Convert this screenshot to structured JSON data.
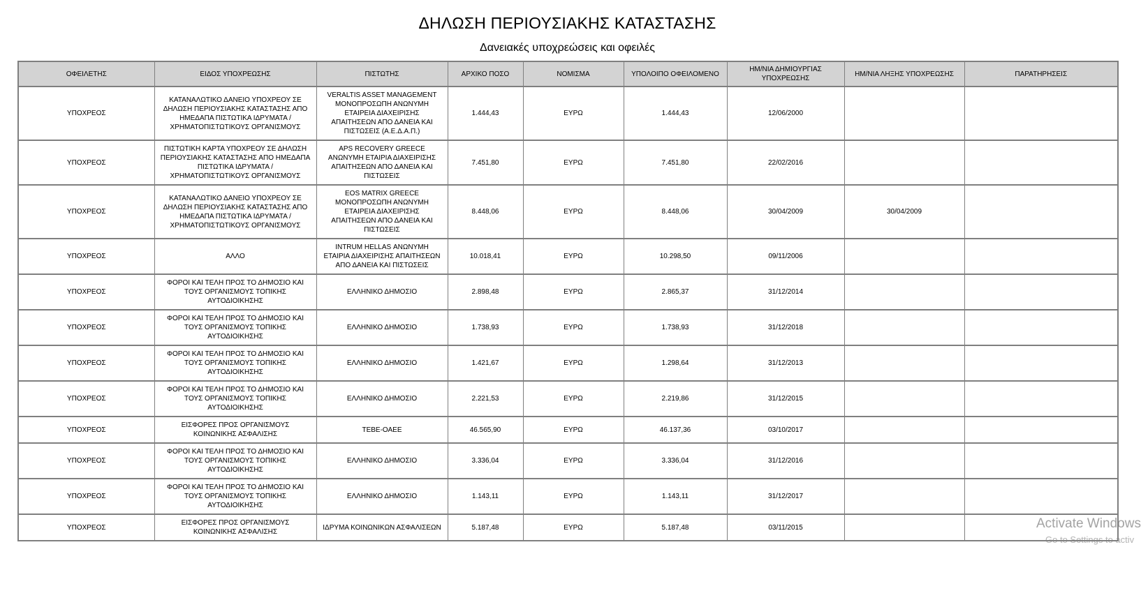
{
  "page": {
    "title": "ΔΗΛΩΣΗ ΠΕΡΙΟΥΣΙΑΚΗΣ ΚΑΤΑΣΤΑΣΗΣ",
    "subtitle": "Δανειακές υποχρεώσεις και οφειλές"
  },
  "table": {
    "columns": [
      "ΟΦΕΙΛΕΤΗΣ",
      "ΕΙΔΟΣ ΥΠΟΧΡΕΩΣΗΣ",
      "ΠΙΣΤΩΤΗΣ",
      "ΑΡΧΙΚΟ ΠΟΣΟ",
      "ΝΟΜΙΣΜΑ",
      "ΥΠΟΛΟΙΠΟ ΟΦΕΙΛΟΜΕΝΟ",
      "ΗΜ/ΝΙΑ ΔΗΜΙΟΥΡΓΙΑΣ ΥΠΟΧΡΕΩΣΗΣ",
      "ΗΜ/ΝΙΑ ΛΗΞΗΣ ΥΠΟΧΡΕΩΣΗΣ",
      "ΠΑΡΑΤΗΡΗΣΕΙΣ"
    ],
    "column_keys": [
      "debtor",
      "obligation-type",
      "creditor",
      "initial-amount",
      "currency",
      "remaining-balance",
      "creation-date",
      "end-date",
      "notes"
    ],
    "rows": [
      [
        "ΥΠΟΧΡΕΟΣ",
        "ΚΑΤΑΝΑΛΩΤΙΚΟ ΔΑΝΕΙΟ ΥΠΟΧΡΕΟΥ ΣΕ ΔΗΛΩΣΗ ΠΕΡΙΟΥΣΙΑΚΗΣ ΚΑΤΑΣΤΑΣΗΣ ΑΠΟ ΗΜΕΔΑΠΑ ΠΙΣΤΩΤΙΚΑ ΙΔΡΥΜΑΤΑ / ΧΡΗΜΑΤΟΠΙΣΤΩΤΙΚΟΥΣ ΟΡΓΑΝΙΣΜΟΥΣ",
        "VERALTIS ASSET MANAGEMENT ΜΟΝΟΠΡΟΣΩΠΗ ΑΝΩΝΥΜΗ ΕΤΑΙΡΕΙΑ ΔΙΑΧΕΙΡΙΣΗΣ ΑΠΑΙΤΗΣΕΩΝ ΑΠΟ ΔΑΝΕΙΑ ΚΑΙ ΠΙΣΤΩΣΕΙΣ (Α.Ε.Δ.Α.Π.)",
        "1.444,43",
        "ΕΥΡΩ",
        "1.444,43",
        "12/06/2000",
        "",
        ""
      ],
      [
        "ΥΠΟΧΡΕΟΣ",
        "ΠΙΣΤΩΤΙΚΗ ΚΑΡΤΑ ΥΠΟΧΡΕΟΥ ΣΕ ΔΗΛΩΣΗ ΠΕΡΙΟΥΣΙΑΚΗΣ ΚΑΤΑΣΤΑΣΗΣ ΑΠΟ ΗΜΕΔΑΠΑ ΠΙΣΤΩΤΙΚΑ ΙΔΡΥΜΑΤΑ / ΧΡΗΜΑΤΟΠΙΣΤΩΤΙΚΟΥΣ ΟΡΓΑΝΙΣΜΟΥΣ",
        "APS RECOVERY GREECE ΑΝΩΝΥΜΗ ΕΤΑΙΡΙΑ ΔΙΑΧΕΙΡΙΣΗΣ ΑΠΑΙΤΗΣΕΩΝ ΑΠΟ ΔΑΝΕΙΑ ΚΑΙ ΠΙΣΤΩΣΕΙΣ",
        "7.451,80",
        "ΕΥΡΩ",
        "7.451,80",
        "22/02/2016",
        "",
        ""
      ],
      [
        "ΥΠΟΧΡΕΟΣ",
        "ΚΑΤΑΝΑΛΩΤΙΚΟ ΔΑΝΕΙΟ ΥΠΟΧΡΕΟΥ ΣΕ ΔΗΛΩΣΗ ΠΕΡΙΟΥΣΙΑΚΗΣ ΚΑΤΑΣΤΑΣΗΣ ΑΠΟ ΗΜΕΔΑΠΑ ΠΙΣΤΩΤΙΚΑ ΙΔΡΥΜΑΤΑ / ΧΡΗΜΑΤΟΠΙΣΤΩΤΙΚΟΥΣ ΟΡΓΑΝΙΣΜΟΥΣ",
        "EOS MATRIX GREECE ΜΟΝΟΠΡΟΣΩΠΗ ΑΝΩΝΥΜΗ ΕΤΑΙΡΕΙΑ ΔΙΑΧΕΙΡΙΣΗΣ ΑΠΑΙΤΗΣΕΩΝ ΑΠΟ ΔΑΝΕΙΑ ΚΑΙ ΠΙΣΤΩΣΕΙΣ",
        "8.448,06",
        "ΕΥΡΩ",
        "8.448,06",
        "30/04/2009",
        "30/04/2009",
        ""
      ],
      [
        "ΥΠΟΧΡΕΟΣ",
        "ΑΛΛΟ",
        "INTRUM HELLAS ΑΝΩΝΥΜΗ ΕΤΑΙΡΙΑ ΔΙΑΧΕΙΡΙΣΗΣ ΑΠΑΙΤΗΣΕΩΝ ΑΠΟ ΔΑΝΕΙΑ ΚΑΙ ΠΙΣΤΩΣΕΙΣ",
        "10.018,41",
        "ΕΥΡΩ",
        "10.298,50",
        "09/11/2006",
        "",
        ""
      ],
      [
        "ΥΠΟΧΡΕΟΣ",
        "ΦΟΡΟΙ ΚΑΙ ΤΕΛΗ ΠΡΟΣ ΤΟ ΔΗΜΟΣΙΟ ΚΑΙ ΤΟΥΣ ΟΡΓΑΝΙΣΜΟΥΣ ΤΟΠΙΚΗΣ ΑΥΤΟΔΙΟΙΚΗΣΗΣ",
        "ΕΛΛΗΝΙΚΟ ΔΗΜΟΣΙΟ",
        "2.898,48",
        "ΕΥΡΩ",
        "2.865,37",
        "31/12/2014",
        "",
        ""
      ],
      [
        "ΥΠΟΧΡΕΟΣ",
        "ΦΟΡΟΙ ΚΑΙ ΤΕΛΗ ΠΡΟΣ ΤΟ ΔΗΜΟΣΙΟ ΚΑΙ ΤΟΥΣ ΟΡΓΑΝΙΣΜΟΥΣ ΤΟΠΙΚΗΣ ΑΥΤΟΔΙΟΙΚΗΣΗΣ",
        "ΕΛΛΗΝΙΚΟ ΔΗΜΟΣΙΟ",
        "1.738,93",
        "ΕΥΡΩ",
        "1.738,93",
        "31/12/2018",
        "",
        ""
      ],
      [
        "ΥΠΟΧΡΕΟΣ",
        "ΦΟΡΟΙ ΚΑΙ ΤΕΛΗ ΠΡΟΣ ΤΟ ΔΗΜΟΣΙΟ ΚΑΙ ΤΟΥΣ ΟΡΓΑΝΙΣΜΟΥΣ ΤΟΠΙΚΗΣ ΑΥΤΟΔΙΟΙΚΗΣΗΣ",
        "ΕΛΛΗΝΙΚΟ ΔΗΜΟΣΙΟ",
        "1.421,67",
        "ΕΥΡΩ",
        "1.298,64",
        "31/12/2013",
        "",
        ""
      ],
      [
        "ΥΠΟΧΡΕΟΣ",
        "ΦΟΡΟΙ ΚΑΙ ΤΕΛΗ ΠΡΟΣ ΤΟ ΔΗΜΟΣΙΟ ΚΑΙ ΤΟΥΣ ΟΡΓΑΝΙΣΜΟΥΣ ΤΟΠΙΚΗΣ ΑΥΤΟΔΙΟΙΚΗΣΗΣ",
        "ΕΛΛΗΝΙΚΟ ΔΗΜΟΣΙΟ",
        "2.221,53",
        "ΕΥΡΩ",
        "2.219,86",
        "31/12/2015",
        "",
        ""
      ],
      [
        "ΥΠΟΧΡΕΟΣ",
        "ΕΙΣΦΟΡΕΣ ΠΡΟΣ ΟΡΓΑΝΙΣΜΟΥΣ ΚΟΙΝΩΝΙΚΗΣ ΑΣΦΑΛΙΣΗΣ",
        "ΤΕΒΕ-ΟΑΕΕ",
        "46.565,90",
        "ΕΥΡΩ",
        "46.137,36",
        "03/10/2017",
        "",
        ""
      ],
      [
        "ΥΠΟΧΡΕΟΣ",
        "ΦΟΡΟΙ ΚΑΙ ΤΕΛΗ ΠΡΟΣ ΤΟ ΔΗΜΟΣΙΟ ΚΑΙ ΤΟΥΣ ΟΡΓΑΝΙΣΜΟΥΣ ΤΟΠΙΚΗΣ ΑΥΤΟΔΙΟΙΚΗΣΗΣ",
        "ΕΛΛΗΝΙΚΟ ΔΗΜΟΣΙΟ",
        "3.336,04",
        "ΕΥΡΩ",
        "3.336,04",
        "31/12/2016",
        "",
        ""
      ],
      [
        "ΥΠΟΧΡΕΟΣ",
        "ΦΟΡΟΙ ΚΑΙ ΤΕΛΗ ΠΡΟΣ ΤΟ ΔΗΜΟΣΙΟ ΚΑΙ ΤΟΥΣ ΟΡΓΑΝΙΣΜΟΥΣ ΤΟΠΙΚΗΣ ΑΥΤΟΔΙΟΙΚΗΣΗΣ",
        "ΕΛΛΗΝΙΚΟ ΔΗΜΟΣΙΟ",
        "1.143,11",
        "ΕΥΡΩ",
        "1.143,11",
        "31/12/2017",
        "",
        ""
      ],
      [
        "ΥΠΟΧΡΕΟΣ",
        "ΕΙΣΦΟΡΕΣ ΠΡΟΣ ΟΡΓΑΝΙΣΜΟΥΣ ΚΟΙΝΩΝΙΚΗΣ ΑΣΦΑΛΙΣΗΣ",
        "ΙΔΡΥΜΑ ΚΟΙΝΩΝΙΚΩΝ ΑΣΦΑΛΙΣΕΩΝ",
        "5.187,48",
        "ΕΥΡΩ",
        "5.187,48",
        "03/11/2015",
        "",
        ""
      ]
    ]
  },
  "watermark": {
    "line1": "Activate Windows",
    "line2": "Go to Settings to activ"
  },
  "colors": {
    "header_background": "#d3d3d3",
    "table_border": "#7f7f7f",
    "watermark_text": "#a9a9a9",
    "page_background": "#ffffff",
    "text": "#000000"
  }
}
